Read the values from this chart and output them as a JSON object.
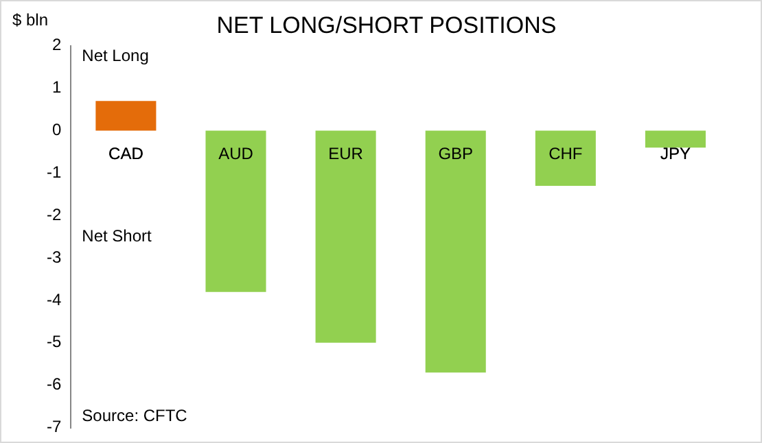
{
  "chart_data": {
    "type": "bar",
    "title": "NET LONG/SHORT POSITIONS",
    "ylabel": "$ bln",
    "categories": [
      "CAD",
      "AUD",
      "EUR",
      "GBP",
      "CHF",
      "JPY"
    ],
    "values": [
      0.7,
      -3.8,
      -5.0,
      -5.7,
      -1.3,
      -0.4
    ],
    "colors": [
      "#e46c0a",
      "#92d050",
      "#92d050",
      "#92d050",
      "#92d050",
      "#92d050"
    ],
    "ylim": [
      -7,
      2
    ],
    "yticks": [
      -7,
      -6,
      -5,
      -4,
      -3,
      -2,
      -1,
      0,
      1,
      2
    ],
    "grid": false,
    "legend": false,
    "annotations": [
      "Net Long",
      "Net Short",
      "Source: CFTC"
    ]
  }
}
